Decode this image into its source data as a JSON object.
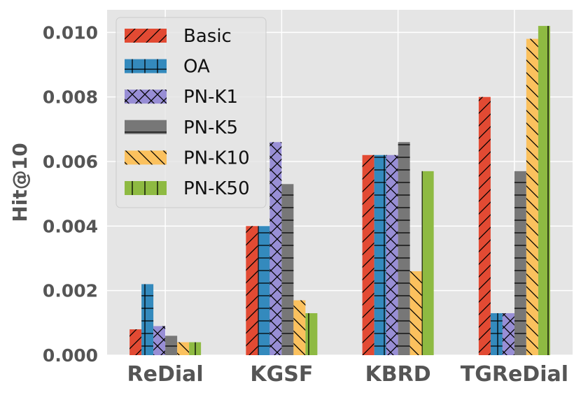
{
  "chart_data": {
    "type": "bar",
    "title": "",
    "xlabel": "",
    "ylabel": "Hit@10",
    "ylim": [
      0,
      0.0107
    ],
    "yticks": [
      "0.000",
      "0.002",
      "0.004",
      "0.006",
      "0.008",
      "0.010"
    ],
    "ytick_values": [
      0,
      0.002,
      0.004,
      0.006,
      0.008,
      0.01
    ],
    "grid": true,
    "legend_position": "top-left",
    "categories": [
      "ReDial",
      "KGSF",
      "KBRD",
      "TGReDial"
    ],
    "series": [
      {
        "name": "Basic",
        "color": "#E24A33",
        "hatch": "diag-fwd",
        "values": [
          0.0008,
          0.004,
          0.0062,
          0.008
        ]
      },
      {
        "name": "OA",
        "color": "#348ABD",
        "hatch": "plus",
        "values": [
          0.0022,
          0.004,
          0.0062,
          0.0013
        ]
      },
      {
        "name": "PN-K1",
        "color": "#988ED5",
        "hatch": "cross",
        "values": [
          0.0009,
          0.0066,
          0.0062,
          0.0013
        ]
      },
      {
        "name": "PN-K5",
        "color": "#777777",
        "hatch": "horiz",
        "values": [
          0.0006,
          0.0053,
          0.0066,
          0.0057
        ]
      },
      {
        "name": "PN-K10",
        "color": "#FBC15E",
        "hatch": "diag-back",
        "values": [
          0.0004,
          0.0017,
          0.0026,
          0.0098
        ]
      },
      {
        "name": "PN-K50",
        "color": "#8EBA42",
        "hatch": "vert",
        "values": [
          0.0004,
          0.0013,
          0.0057,
          0.0102
        ]
      }
    ]
  }
}
